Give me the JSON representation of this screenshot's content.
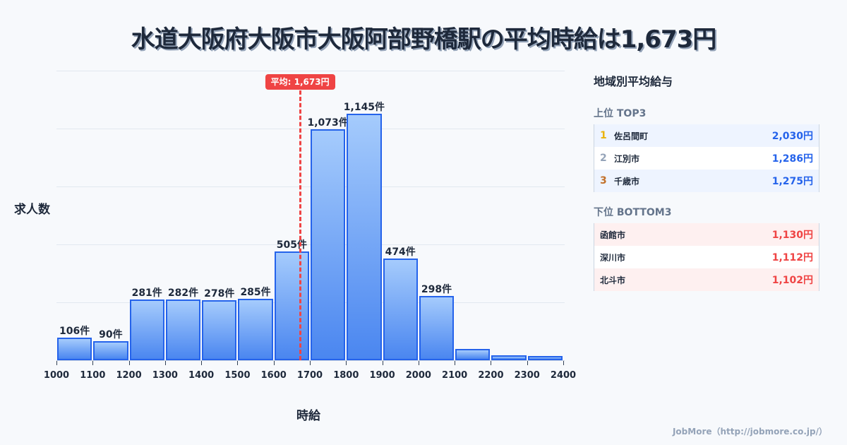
{
  "title": "水道大阪府大阪市大阪阿部野橋駅の平均時給は1,673円",
  "chart_data": {
    "type": "bar",
    "title": "水道大阪府大阪市大阪阿部野橋駅の平均時給は1,673円",
    "xlabel": "時給",
    "ylabel": "求人数",
    "bins": [
      1000,
      1100,
      1200,
      1300,
      1400,
      1500,
      1600,
      1700,
      1800,
      1900,
      2000,
      2100,
      2200,
      2300,
      2400
    ],
    "categories": [
      "1000-1100",
      "1100-1200",
      "1200-1300",
      "1300-1400",
      "1400-1500",
      "1500-1600",
      "1600-1700",
      "1700-1800",
      "1800-1900",
      "1900-2000",
      "2000-2100",
      "2100-2200",
      "2200-2300",
      "2300-2400"
    ],
    "values": [
      106,
      90,
      281,
      282,
      278,
      285,
      505,
      1073,
      1145,
      474,
      298,
      52,
      23,
      20
    ],
    "value_labels": [
      "106件",
      "90件",
      "281件",
      "282件",
      "278件",
      "285件",
      "505件",
      "1,073件",
      "1,145件",
      "474件",
      "298件",
      "",
      "",
      ""
    ],
    "tick_labels": [
      "1000",
      "1100",
      "1200",
      "1300",
      "1400",
      "1500",
      "1600",
      "1700",
      "1800",
      "1900",
      "2000",
      "2100",
      "2200",
      "2300",
      "2400"
    ],
    "average": 1673,
    "average_label": "平均: 1,673円",
    "grid": true,
    "colors": {
      "bar_fill_top": "#a5cbfc",
      "bar_fill_bottom": "#4a86f0",
      "bar_border": "#2563eb",
      "average_line": "#ef4444"
    }
  },
  "panel": {
    "title": "地域別平均給与",
    "top_title": "上位 TOP3",
    "top": [
      {
        "rank": "1",
        "name": "佐呂間町",
        "value": "2,030円",
        "rank_color": "#eab308"
      },
      {
        "rank": "2",
        "name": "江別市",
        "value": "1,286円",
        "rank_color": "#94a3b8"
      },
      {
        "rank": "3",
        "name": "千歳市",
        "value": "1,275円",
        "rank_color": "#c2702a"
      }
    ],
    "bottom_title": "下位 BOTTOM3",
    "bottom": [
      {
        "name": "函館市",
        "value": "1,130円"
      },
      {
        "name": "深川市",
        "value": "1,112円"
      },
      {
        "name": "北斗市",
        "value": "1,102円"
      }
    ]
  },
  "footer": "JobMore（http://jobmore.co.jp/）"
}
